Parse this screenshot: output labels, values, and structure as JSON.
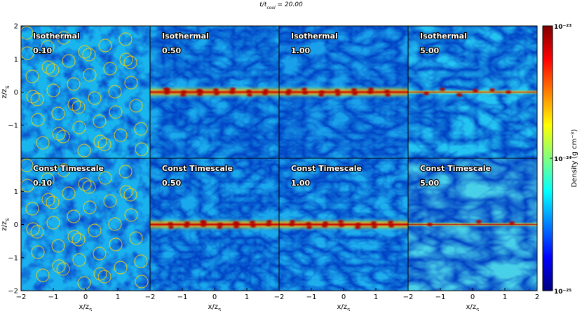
{
  "figure": {
    "title": "t/t_cool = 20.00",
    "title_main": "t/t",
    "title_sub": "cool",
    "title_value": " = 20.00"
  },
  "chart_data": {
    "type": "heatmap",
    "title": "t/t_cool = 20.00",
    "rows": [
      "Isothermal",
      "Const Timescale"
    ],
    "columns": [
      "0.10",
      "0.50",
      "1.00",
      "5.00"
    ],
    "panels": [
      {
        "row": 0,
        "col": 0,
        "label": "Isothermal",
        "value": "0.10"
      },
      {
        "row": 0,
        "col": 1,
        "label": "Isothermal",
        "value": "0.50"
      },
      {
        "row": 0,
        "col": 2,
        "label": "Isothermal",
        "value": "1.00"
      },
      {
        "row": 0,
        "col": 3,
        "label": "Isothermal",
        "value": "5.00"
      },
      {
        "row": 1,
        "col": 0,
        "label": "Const Timescale",
        "value": "0.10"
      },
      {
        "row": 1,
        "col": 1,
        "label": "Const Timescale",
        "value": "0.50"
      },
      {
        "row": 1,
        "col": 2,
        "label": "Const Timescale",
        "value": "1.00"
      },
      {
        "row": 1,
        "col": 3,
        "label": "Const Timescale",
        "value": "5.00"
      }
    ],
    "xlabel": "x/z_S",
    "xlabel_main": "x/z",
    "xlabel_sub": "S",
    "ylabel": "z/z_S",
    "ylabel_main": "z/z",
    "ylabel_sub": "S",
    "xlim": [
      -2,
      2
    ],
    "ylim": [
      -2,
      2
    ],
    "x_ticks": [
      -2,
      -1,
      0,
      1
    ],
    "x_ticks_last": [
      -2,
      -1,
      0,
      1,
      2
    ],
    "y_ticks_top": [
      2,
      1,
      0,
      -1
    ],
    "y_ticks_bottom": [
      -2,
      -1,
      0,
      1
    ],
    "x_tick_labels": [
      "−2",
      "−1",
      "0",
      "1"
    ],
    "x_tick_labels_last": [
      "−2",
      "−1",
      "0",
      "1",
      "2"
    ],
    "y_tick_labels_top": [
      "2",
      "1",
      "0",
      "−1"
    ],
    "y_tick_labels_bottom": [
      "−2",
      "−1",
      "0",
      "1"
    ],
    "colorbar": {
      "label": "Density (g cm⁻³)",
      "scale": "log",
      "range": [
        1e-25,
        1e-23
      ],
      "tick_labels": [
        "10⁻²³",
        "10⁻²⁴",
        "10⁻²⁵"
      ],
      "colormap": "jet",
      "colors": [
        "#00007f",
        "#0000ff",
        "#007fff",
        "#00ffff",
        "#7fff7f",
        "#ffff00",
        "#ff7f00",
        "#ff0000",
        "#7f0000"
      ]
    },
    "grid": false
  }
}
